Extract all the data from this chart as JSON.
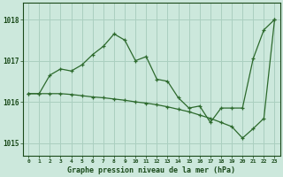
{
  "title": "Graphe pression niveau de la mer (hPa)",
  "x": [
    0,
    1,
    2,
    3,
    4,
    5,
    6,
    7,
    8,
    9,
    10,
    11,
    12,
    13,
    14,
    15,
    16,
    17,
    18,
    19,
    20,
    21,
    22,
    23
  ],
  "series1": [
    1016.2,
    1016.2,
    1016.65,
    1016.8,
    1016.75,
    1016.9,
    1017.15,
    1017.35,
    1017.65,
    1017.5,
    1017.0,
    1017.1,
    1016.55,
    1016.5,
    1016.1,
    1015.85,
    1015.9,
    1015.5,
    1015.85,
    1015.85,
    1015.85,
    1017.05,
    1017.75,
    1018.0
  ],
  "series2": [
    1016.2,
    1016.2,
    1016.2,
    1016.2,
    1016.18,
    1016.15,
    1016.12,
    1016.1,
    1016.07,
    1016.04,
    1016.0,
    1015.97,
    1015.93,
    1015.88,
    1015.82,
    1015.76,
    1015.68,
    1015.6,
    1015.5,
    1015.4,
    1015.12,
    1015.35,
    1015.6,
    1018.0
  ],
  "line_color": "#2d6a2d",
  "bg_color": "#cce8dc",
  "grid_color": "#aacfc0",
  "text_color": "#1a4a1a",
  "ylim": [
    1014.7,
    1018.4
  ],
  "yticks": [
    1015,
    1016,
    1017,
    1018
  ],
  "xticks": [
    0,
    1,
    2,
    3,
    4,
    5,
    6,
    7,
    8,
    9,
    10,
    11,
    12,
    13,
    14,
    15,
    16,
    17,
    18,
    19,
    20,
    21,
    22,
    23
  ],
  "marker": "+"
}
